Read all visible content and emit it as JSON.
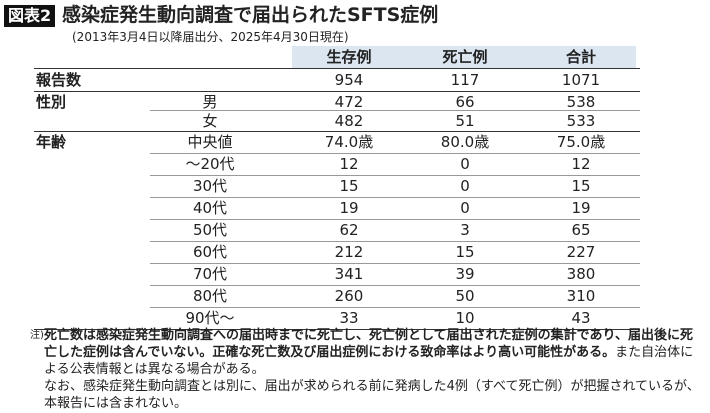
{
  "header": {
    "badge": "図表2",
    "title": "感染症発生動向調査で届出られたSFTS症例",
    "subtitle": "(2013年3月4日以降届出分、2025年4月30日現在)"
  },
  "table": {
    "columns": [
      "生存例",
      "死亡例",
      "合計"
    ],
    "rows": [
      {
        "group": "報告数",
        "cells": [
          "954",
          "117",
          "1071"
        ]
      },
      {
        "group": "性別",
        "label": "男",
        "cells": [
          "472",
          "66",
          "538"
        ]
      },
      {
        "label": "女",
        "cells": [
          "482",
          "51",
          "533"
        ]
      },
      {
        "group": "年齢",
        "label": "中央値",
        "cells": [
          "74.0歳",
          "80.0歳",
          "75.0歳"
        ]
      },
      {
        "label": "～20代",
        "cells": [
          "12",
          "0",
          "12"
        ]
      },
      {
        "label": "30代",
        "cells": [
          "15",
          "0",
          "15"
        ]
      },
      {
        "label": "40代",
        "cells": [
          "19",
          "0",
          "19"
        ]
      },
      {
        "label": "50代",
        "cells": [
          "62",
          "3",
          "65"
        ]
      },
      {
        "label": "60代",
        "cells": [
          "212",
          "15",
          "227"
        ]
      },
      {
        "label": "70代",
        "cells": [
          "341",
          "39",
          "380"
        ]
      },
      {
        "label": "80代",
        "cells": [
          "260",
          "50",
          "310"
        ]
      },
      {
        "label": "90代～",
        "cells": [
          "33",
          "10",
          "43"
        ]
      }
    ]
  },
  "note": {
    "marker": "注)",
    "bold": "死亡数は感染症発生動向調査への届出時までに死亡し、死亡例として届出された症例の集計であり、届出後に死亡した症例は含んでいない。正確な死亡数及び届出症例における致命率はより高い可能性がある。",
    "normal": "また自治体による公表情報とは異なる場合がある。",
    "second": "なお、感染症発生動向調査とは別に、届出が求められる前に発病した4例（すべて死亡例）が把握されているが、本報告には含まれない。"
  }
}
